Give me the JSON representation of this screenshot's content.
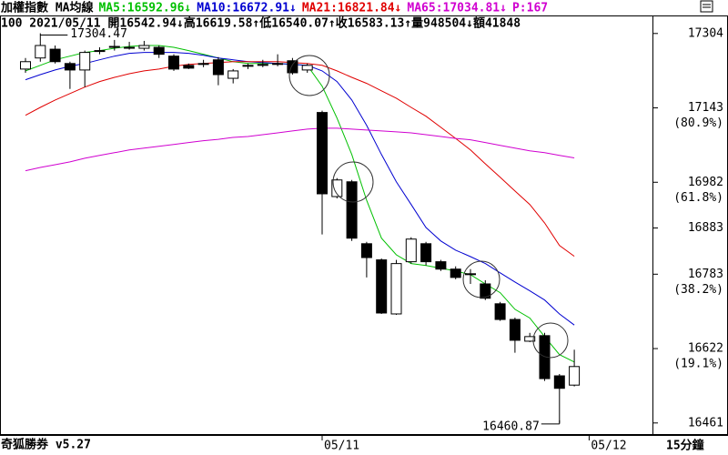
{
  "chart_data": {
    "type": "candlestick",
    "title": "加權指數 MA均線",
    "subtitle": "100 2021/05/11 開16542.94↓高16619.58↑低16540.07↑收16583.13↑量948504↓額41848",
    "header_tail": "P:167",
    "footer_left": "奇狐勝券 v5.27",
    "period": "15分鐘",
    "high_label": "17304.47",
    "low_label": "16460.87",
    "categories": [
      null,
      null,
      null,
      null,
      null,
      null,
      null,
      null,
      null,
      null,
      null,
      null,
      null,
      null,
      null,
      null,
      null,
      null,
      null,
      null,
      "05/11",
      null,
      null,
      null,
      null,
      null,
      null,
      null,
      null,
      null,
      null,
      null,
      null,
      null,
      null,
      null,
      null,
      null,
      "05/12"
    ],
    "open": [
      17227,
      17251,
      17270,
      17239,
      17225,
      17265,
      17274,
      17274,
      17272,
      17274,
      17255,
      17235,
      17239,
      17247,
      17207,
      17233,
      17235,
      17239,
      17245,
      17225,
      17133,
      16951,
      16983,
      16849,
      16814,
      16697,
      16810,
      16849,
      16810,
      16794,
      16784,
      16762,
      16719,
      16685,
      16638,
      16650,
      16563,
      16542.94,
      null
    ],
    "high": [
      17251,
      17304.47,
      17278,
      17243,
      17267,
      17274,
      17290,
      17286,
      17288,
      17278,
      17259,
      17239,
      17247,
      17253,
      17227,
      17239,
      17247,
      17259,
      17251,
      17239,
      17137,
      16991,
      16987,
      16853,
      16817,
      16814,
      16863,
      16853,
      16814,
      16800,
      16794,
      16770,
      16723,
      16689,
      16656,
      16656,
      16567,
      16619.58,
      null
    ],
    "low": [
      17219,
      17243,
      17239,
      17184,
      17188,
      17259,
      17267,
      17269,
      17267,
      17251,
      17223,
      17227,
      17231,
      17192,
      17196,
      17227,
      17231,
      17233,
      17215,
      17219,
      16869,
      16947,
      16855,
      16776,
      16697,
      16695,
      16806,
      16802,
      16790,
      16772,
      16762,
      16727,
      16682,
      16613,
      16636,
      16552,
      16460.87,
      16540.07,
      null
    ],
    "close": [
      17243,
      17278,
      17243,
      17225,
      17263,
      17267,
      17276,
      17273,
      17278,
      17259,
      17227,
      17229,
      17237,
      17215,
      17223,
      17235,
      17237,
      17238,
      17219,
      17235,
      16957,
      16987,
      16861,
      16819,
      16699,
      16806,
      16859,
      16810,
      16794,
      16776,
      16782,
      16731,
      16685,
      16640,
      16648,
      16557,
      16536,
      16583.13,
      null
    ],
    "up_color": "#ffffff",
    "down_color": "#000000",
    "series": [
      {
        "name": "MA5:16592.96↓",
        "color": "#00c000",
        "values": [
          17223,
          17235,
          17247,
          17255,
          17263,
          17267,
          17272,
          17276,
          17278,
          17278,
          17274,
          17267,
          17259,
          17251,
          17243,
          17239,
          17239,
          17239,
          17237,
          17235,
          17190,
          17121,
          17042,
          16943,
          16861,
          16825,
          16806,
          16802,
          16796,
          16790,
          16782,
          16762,
          16743,
          16707,
          16688,
          16648,
          16609,
          16592.96,
          null
        ]
      },
      {
        "name": "MA10:16672.91↓",
        "color": "#0000d0",
        "values": [
          17204,
          17215,
          17225,
          17233,
          17239,
          17247,
          17255,
          17261,
          17263,
          17263,
          17263,
          17261,
          17257,
          17251,
          17247,
          17243,
          17241,
          17239,
          17237,
          17235,
          17223,
          17200,
          17160,
          17105,
          17042,
          16983,
          16934,
          16884,
          16855,
          16835,
          16821,
          16806,
          16786,
          16766,
          16747,
          16727,
          16697,
          16672.91,
          null
        ]
      },
      {
        "name": "MA21:16821.84↓",
        "color": "#e00000",
        "values": [
          17127,
          17144,
          17160,
          17174,
          17188,
          17200,
          17209,
          17217,
          17223,
          17227,
          17233,
          17237,
          17239,
          17241,
          17243,
          17243,
          17243,
          17243,
          17241,
          17239,
          17235,
          17223,
          17209,
          17196,
          17180,
          17164,
          17144,
          17125,
          17101,
          17077,
          17052,
          17022,
          16993,
          16963,
          16934,
          16894,
          16845,
          16821.84,
          null
        ]
      },
      {
        "name": "MA65:17034.81↓",
        "color": "#d000d0",
        "values": [
          17007,
          17014,
          17020,
          17026,
          17034,
          17040,
          17046,
          17052,
          17056,
          17060,
          17064,
          17068,
          17072,
          17075,
          17079,
          17081,
          17085,
          17089,
          17093,
          17097,
          17099,
          17099,
          17097,
          17095,
          17093,
          17091,
          17089,
          17085,
          17081,
          17077,
          17074,
          17068,
          17062,
          17056,
          17050,
          17046,
          17040,
          17034.81,
          null
        ]
      }
    ],
    "ylim": [
      16435,
      17343
    ],
    "yticks": [
      17304,
      17143,
      16982,
      16883,
      16783,
      16622,
      16461
    ],
    "ytick_notes": [
      {
        "value": 17143,
        "label": "(80.9%)"
      },
      {
        "value": 16982,
        "label": "(61.8%)"
      },
      {
        "value": 16783,
        "label": "(38.2%)"
      },
      {
        "value": 16622,
        "label": "(19.1%)"
      }
    ]
  }
}
